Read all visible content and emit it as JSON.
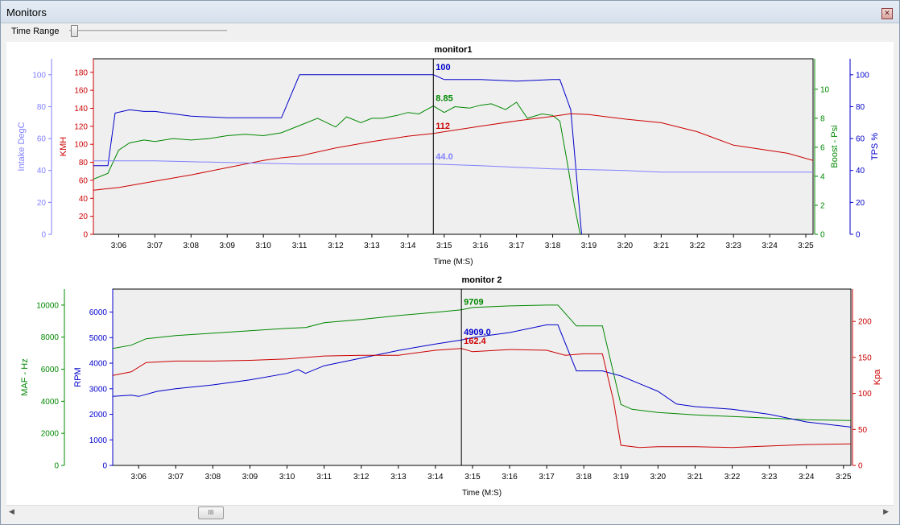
{
  "window": {
    "title": "Monitors",
    "close_icon": "close-icon"
  },
  "toolbar": {
    "time_range_label": "Time Range",
    "time_range_position": 0.05
  },
  "scrollbar": {
    "position": 0.2,
    "left_icon": "arrow-left-icon",
    "right_icon": "arrow-right-icon",
    "thumb_grip": "III"
  },
  "chart_data": [
    {
      "type": "line",
      "title": "monitor1",
      "xlabel": "Time (M:S)",
      "x_ticks": [
        "3:06",
        "3:07",
        "3:08",
        "3:09",
        "3:10",
        "3:11",
        "3:12",
        "3:13",
        "3:14",
        "3:15",
        "3:16",
        "3:17",
        "3:18",
        "3:19",
        "3:20",
        "3:21",
        "3:22",
        "3:23",
        "3:24",
        "3:25"
      ],
      "x_range": [
        185.3,
        205.2
      ],
      "cursor_x": 194.7,
      "grid": false,
      "axes": [
        {
          "label": "Intake DegC",
          "side": "left",
          "range": [
            0,
            110
          ],
          "ticks": [
            0,
            20,
            40,
            60,
            80,
            100
          ],
          "color": "#7f7fff"
        },
        {
          "label": "KMH",
          "side": "left",
          "range": [
            0,
            195
          ],
          "ticks": [
            0,
            20,
            40,
            60,
            80,
            100,
            120,
            140,
            160,
            180
          ],
          "color": "#cc0000"
        },
        {
          "label": "Boost - Psi",
          "side": "right",
          "range": [
            0,
            12.1
          ],
          "ticks": [
            0,
            2,
            4,
            6,
            8,
            10
          ],
          "color": "#008800"
        },
        {
          "label": "TPS %",
          "side": "right",
          "range": [
            0,
            110
          ],
          "ticks": [
            0,
            20,
            40,
            60,
            80,
            100
          ],
          "color": "#0000cc"
        }
      ],
      "series": [
        {
          "name": "TPS %",
          "axis": 3,
          "color": "#0000cc",
          "cursor_value": "100",
          "x": [
            185.3,
            185.7,
            185.9,
            186.3,
            186.7,
            187.0,
            188.0,
            189.0,
            190.0,
            190.5,
            191.0,
            192.0,
            193.0,
            194.0,
            194.7,
            195.0,
            196.0,
            197.0,
            198.0,
            198.2,
            198.5,
            198.8,
            199.0
          ],
          "y": [
            43,
            43,
            76,
            78,
            77,
            77,
            74,
            73,
            73,
            73,
            100,
            100,
            100,
            100,
            100,
            97,
            97,
            96,
            97,
            97,
            78,
            0,
            -10
          ]
        },
        {
          "name": "Boost - Psi",
          "axis": 2,
          "color": "#008800",
          "cursor_value": "8.85",
          "x": [
            185.3,
            185.7,
            186.0,
            186.3,
            186.7,
            187.0,
            187.5,
            188.0,
            188.5,
            189.0,
            189.5,
            190.0,
            190.5,
            191.0,
            191.5,
            192.0,
            192.3,
            192.7,
            193.0,
            193.3,
            193.7,
            194.0,
            194.3,
            194.7,
            195.0,
            195.3,
            195.7,
            196.0,
            196.3,
            196.7,
            197.0,
            197.3,
            197.7,
            198.0,
            198.2,
            198.4,
            198.6,
            198.8,
            199.0
          ],
          "y": [
            3.8,
            4.2,
            5.8,
            6.3,
            6.5,
            6.4,
            6.6,
            6.5,
            6.6,
            6.8,
            6.9,
            6.8,
            7.0,
            7.5,
            8.0,
            7.4,
            8.1,
            7.7,
            8.0,
            8.0,
            8.2,
            8.4,
            8.3,
            8.85,
            8.4,
            8.8,
            8.7,
            8.9,
            9.0,
            8.6,
            9.1,
            8.0,
            8.3,
            8.2,
            7.8,
            5.0,
            2.0,
            -0.5,
            -2
          ]
        },
        {
          "name": "KMH",
          "axis": 1,
          "color": "#cc0000",
          "cursor_value": "112",
          "x": [
            185.3,
            186.0,
            187.0,
            188.0,
            189.0,
            190.0,
            190.5,
            191.0,
            192.0,
            193.0,
            194.0,
            194.7,
            195.0,
            196.0,
            197.0,
            198.0,
            198.5,
            199.0,
            200.0,
            201.0,
            202.0,
            203.0,
            204.0,
            204.5,
            205.2
          ],
          "y": [
            49,
            52,
            59,
            66,
            74,
            82,
            85,
            87,
            96,
            103,
            109,
            112,
            114,
            120,
            126,
            131,
            134,
            133,
            128,
            124,
            114,
            99,
            93,
            90,
            82
          ]
        },
        {
          "name": "Intake DegC",
          "axis": 0,
          "color": "#7f7fff",
          "cursor_value": "44.0",
          "x": [
            185.3,
            187.0,
            189.0,
            191.0,
            193.0,
            194.7,
            196.0,
            198.0,
            200.0,
            201.0,
            203.0,
            205.2
          ],
          "y": [
            46,
            46,
            45,
            44,
            44,
            44,
            43,
            41,
            40,
            39,
            39,
            39
          ]
        }
      ]
    },
    {
      "type": "line",
      "title": "monitor 2",
      "xlabel": "Time (M:S)",
      "x_ticks": [
        "3:06",
        "3:07",
        "3:08",
        "3:09",
        "3:10",
        "3:11",
        "3:12",
        "3:13",
        "3:14",
        "3:15",
        "3:16",
        "3:17",
        "3:18",
        "3:19",
        "3:20",
        "3:21",
        "3:22",
        "3:23",
        "3:24",
        "3:25"
      ],
      "x_range": [
        185.3,
        205.2
      ],
      "cursor_x": 194.7,
      "grid": false,
      "axes": [
        {
          "label": "MAF - Hz",
          "side": "left",
          "range": [
            0,
            11000
          ],
          "ticks": [
            0,
            2000,
            4000,
            6000,
            8000,
            10000
          ],
          "color": "#008800"
        },
        {
          "label": "RPM",
          "side": "left",
          "range": [
            0,
            6900
          ],
          "ticks": [
            0,
            1000,
            2000,
            3000,
            4000,
            5000,
            6000
          ],
          "color": "#0000cc"
        },
        {
          "label": "Kpa",
          "side": "right",
          "range": [
            0,
            245
          ],
          "ticks": [
            0,
            50,
            100,
            150,
            200
          ],
          "color": "#cc0000"
        }
      ],
      "series": [
        {
          "name": "MAF - Hz",
          "axis": 0,
          "color": "#008800",
          "cursor_value": "9709",
          "x": [
            185.3,
            185.8,
            186.2,
            187.0,
            188.0,
            189.0,
            190.0,
            190.5,
            191.0,
            192.0,
            193.0,
            194.0,
            194.7,
            195.0,
            196.0,
            197.0,
            197.3,
            197.8,
            198.0,
            198.5,
            199.0,
            199.3,
            200.0,
            201.0,
            202.0,
            203.0,
            204.0,
            205.2
          ],
          "y": [
            7300,
            7500,
            7900,
            8100,
            8250,
            8400,
            8550,
            8600,
            8900,
            9100,
            9350,
            9550,
            9709,
            9850,
            9950,
            10000,
            10000,
            8700,
            8700,
            8700,
            3800,
            3500,
            3300,
            3150,
            3050,
            2950,
            2850,
            2800
          ]
        },
        {
          "name": "RPM",
          "axis": 1,
          "color": "#0000cc",
          "cursor_value": "4909.0",
          "x": [
            185.3,
            185.8,
            186.0,
            186.5,
            187.0,
            188.0,
            189.0,
            190.0,
            190.3,
            190.5,
            191.0,
            192.0,
            193.0,
            194.0,
            194.7,
            195.0,
            196.0,
            197.0,
            197.3,
            197.8,
            198.0,
            198.5,
            199.0,
            199.5,
            200.0,
            200.5,
            201.0,
            202.0,
            203.0,
            204.0,
            205.2
          ],
          "y": [
            2700,
            2750,
            2700,
            2900,
            3000,
            3150,
            3350,
            3600,
            3750,
            3600,
            3900,
            4200,
            4500,
            4750,
            4909,
            5000,
            5200,
            5500,
            5500,
            3700,
            3700,
            3700,
            3500,
            3200,
            2900,
            2400,
            2300,
            2200,
            2000,
            1700,
            1500
          ]
        },
        {
          "name": "Kpa",
          "axis": 2,
          "color": "#cc0000",
          "cursor_value": "162.4",
          "x": [
            185.3,
            185.8,
            186.2,
            187.0,
            188.0,
            189.0,
            190.0,
            191.0,
            192.0,
            193.0,
            194.0,
            194.7,
            195.0,
            196.0,
            197.0,
            197.5,
            198.0,
            198.5,
            198.8,
            199.0,
            199.5,
            200.0,
            201.0,
            202.0,
            203.0,
            204.0,
            205.2
          ],
          "y": [
            125,
            130,
            143,
            145,
            145,
            146,
            148,
            152,
            153,
            153,
            160,
            162.4,
            158,
            161,
            160,
            153,
            155,
            155,
            90,
            28,
            25,
            26,
            26,
            25,
            27,
            29,
            30
          ]
        }
      ]
    }
  ]
}
